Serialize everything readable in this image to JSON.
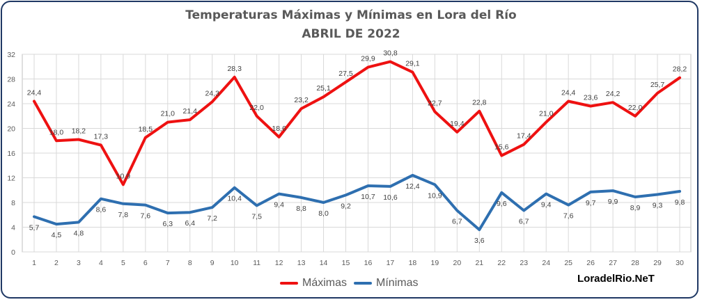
{
  "chart_data": {
    "type": "line",
    "title": "Temperaturas  Máximas  y Mínimas  en Lora del Río",
    "subtitle": "ABRIL DE 2022",
    "xlabel": "",
    "ylabel": "",
    "categories": [
      "1",
      "2",
      "3",
      "4",
      "5",
      "6",
      "7",
      "8",
      "9",
      "10",
      "11",
      "12",
      "13",
      "14",
      "15",
      "16",
      "17",
      "18",
      "19",
      "20",
      "21",
      "22",
      "23",
      "24",
      "25",
      "26",
      "27",
      "28",
      "29",
      "30"
    ],
    "ylim": [
      0,
      32
    ],
    "yticks": [
      0,
      4,
      8,
      12,
      16,
      20,
      24,
      28,
      32
    ],
    "grid": true,
    "legend_position": "bottom",
    "series": [
      {
        "name": "Máximas",
        "color": "#ee1111",
        "values": [
          24.4,
          18.0,
          18.2,
          17.3,
          10.9,
          18.5,
          21.0,
          21.4,
          24.3,
          28.3,
          22.0,
          18.6,
          23.2,
          25.1,
          27.5,
          29.9,
          30.8,
          29.1,
          22.7,
          19.4,
          22.8,
          15.6,
          17.4,
          21.0,
          24.4,
          23.6,
          24.2,
          22.0,
          25.7,
          28.2
        ],
        "labels": [
          "24,4",
          "18,0",
          "18,2",
          "17,3",
          "10,9",
          "18,5",
          "21,0",
          "21,4",
          "24,3",
          "28,3",
          "22,0",
          "18,6",
          "23,2",
          "25,1",
          "27,5",
          "29,9",
          "30,8",
          "29,1",
          "22,7",
          "19,4",
          "22,8",
          "15,6",
          "17,4",
          "21,0",
          "24,4",
          "23,6",
          "24,2",
          "22,0",
          "25,7",
          "28,2"
        ]
      },
      {
        "name": "Mínimas",
        "color": "#2e6fb0",
        "values": [
          5.7,
          4.5,
          4.8,
          8.6,
          7.8,
          7.6,
          6.3,
          6.4,
          7.2,
          10.4,
          7.5,
          9.4,
          8.8,
          8.0,
          9.2,
          10.7,
          10.6,
          12.4,
          10.9,
          6.7,
          3.6,
          9.6,
          6.7,
          9.4,
          7.6,
          9.7,
          9.9,
          8.9,
          9.3,
          9.8
        ],
        "labels": [
          "5,7",
          "4,5",
          "4,8",
          "8,6",
          "7,8",
          "7,6",
          "6,3",
          "6,4",
          "7,2",
          "10,4",
          "7,5",
          "9,4",
          "8,8",
          "8,0",
          "9,2",
          "10,7",
          "10,6",
          "12,4",
          "10,9",
          "6,7",
          "3,6",
          "9,6",
          "6,7",
          "9,4",
          "7,6",
          "9,7",
          "9,9",
          "8,9",
          "9,3",
          "9,8"
        ]
      }
    ]
  },
  "watermark": "LoradelRio.NeT"
}
